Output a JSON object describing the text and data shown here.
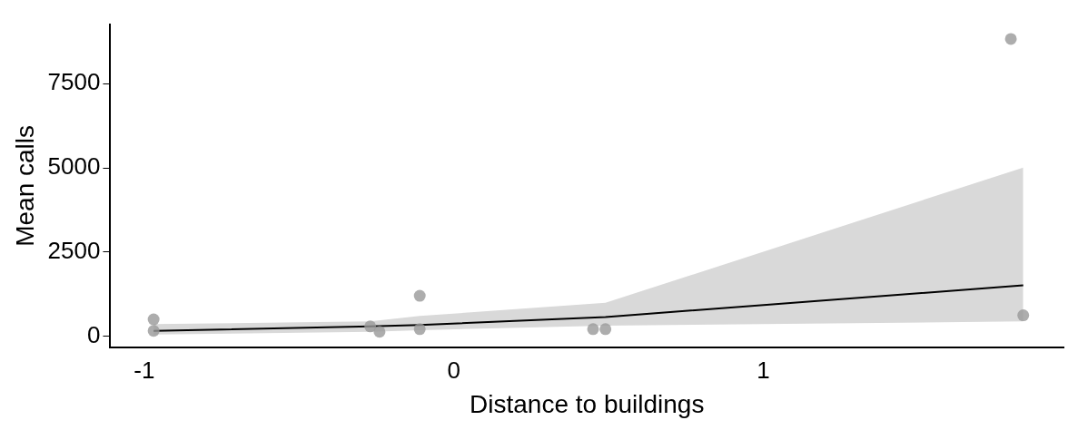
{
  "chart_data": {
    "type": "scatter",
    "xlabel": "Distance to buildings",
    "ylabel": "Mean calls",
    "xlim": [
      -1.11,
      1.97
    ],
    "ylim": [
      -340,
      9270
    ],
    "xticks": [
      -1,
      0,
      1
    ],
    "yticks": [
      0,
      2500,
      5000,
      7500
    ],
    "grid": false,
    "legend": false,
    "marker": "circle",
    "series": [
      {
        "type": "scatter",
        "color": "#999999",
        "x": [
          -0.97,
          -0.97,
          -0.27,
          -0.24,
          -0.11,
          -0.11,
          0.45,
          0.49,
          1.8,
          1.84
        ],
        "values": [
          160,
          500,
          290,
          130,
          1200,
          210,
          210,
          210,
          8830,
          620
        ]
      },
      {
        "type": "line",
        "color": "#000000",
        "line_style": "solid",
        "marker": "none",
        "x": [
          -0.97,
          -0.27,
          -0.11,
          0.49,
          1.84
        ],
        "values": [
          160,
          290,
          330,
          570,
          1510
        ],
        "lower": [
          50,
          130,
          180,
          310,
          440
        ],
        "upper": [
          360,
          440,
          600,
          990,
          5010
        ]
      }
    ]
  }
}
